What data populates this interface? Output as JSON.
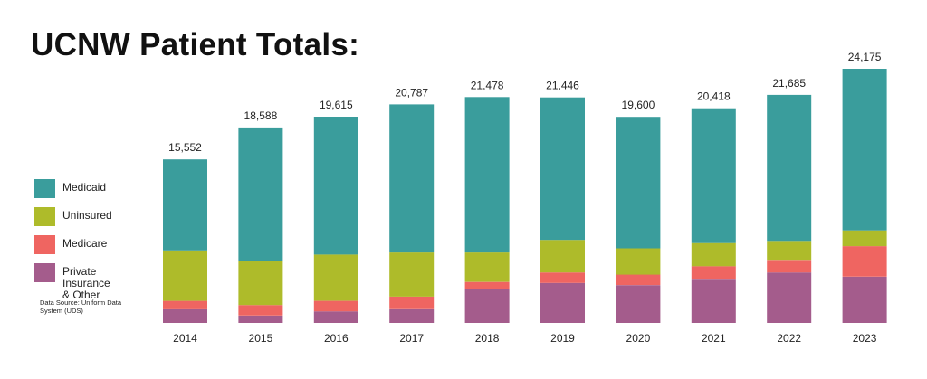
{
  "title": "UCNW Patient Totals:",
  "legend": [
    {
      "label": "Medicaid",
      "color": "#3a9d9c"
    },
    {
      "label": "Uninsured",
      "color": "#aebb2a"
    },
    {
      "label": "Medicare",
      "color": "#ef6561"
    },
    {
      "label": "Private\nInsurance\n& Other",
      "color": "#a45c8c"
    }
  ],
  "source": "Data Source: Uniform Data System (UDS)",
  "chart_data": {
    "type": "bar",
    "stacked": true,
    "categories": [
      "2014",
      "2015",
      "2016",
      "2017",
      "2018",
      "2019",
      "2020",
      "2021",
      "2022",
      "2023"
    ],
    "totals": [
      "15,552",
      "18,588",
      "19,615",
      "20,787",
      "21,478",
      "21,446",
      "19,600",
      "20,418",
      "21,685",
      "24,175"
    ],
    "series": [
      {
        "name": "Private Insurance & Other",
        "color": "#a45c8c",
        "values": [
          1300,
          700,
          1100,
          1300,
          3200,
          3800,
          3600,
          4200,
          4800,
          4400
        ]
      },
      {
        "name": "Medicare",
        "color": "#ef6561",
        "values": [
          800,
          1000,
          1000,
          1200,
          700,
          1000,
          1000,
          1200,
          1200,
          2900
        ]
      },
      {
        "name": "Uninsured",
        "color": "#aebb2a",
        "values": [
          4800,
          4200,
          4400,
          4200,
          2800,
          3100,
          2500,
          2200,
          1800,
          1500
        ]
      },
      {
        "name": "Medicaid",
        "color": "#3a9d9c",
        "values": [
          8652,
          12688,
          13115,
          14087,
          14778,
          13546,
          12500,
          12818,
          13885,
          15375
        ]
      }
    ],
    "ylim": [
      0,
      24175
    ],
    "grid": false,
    "legend_position": "left"
  }
}
